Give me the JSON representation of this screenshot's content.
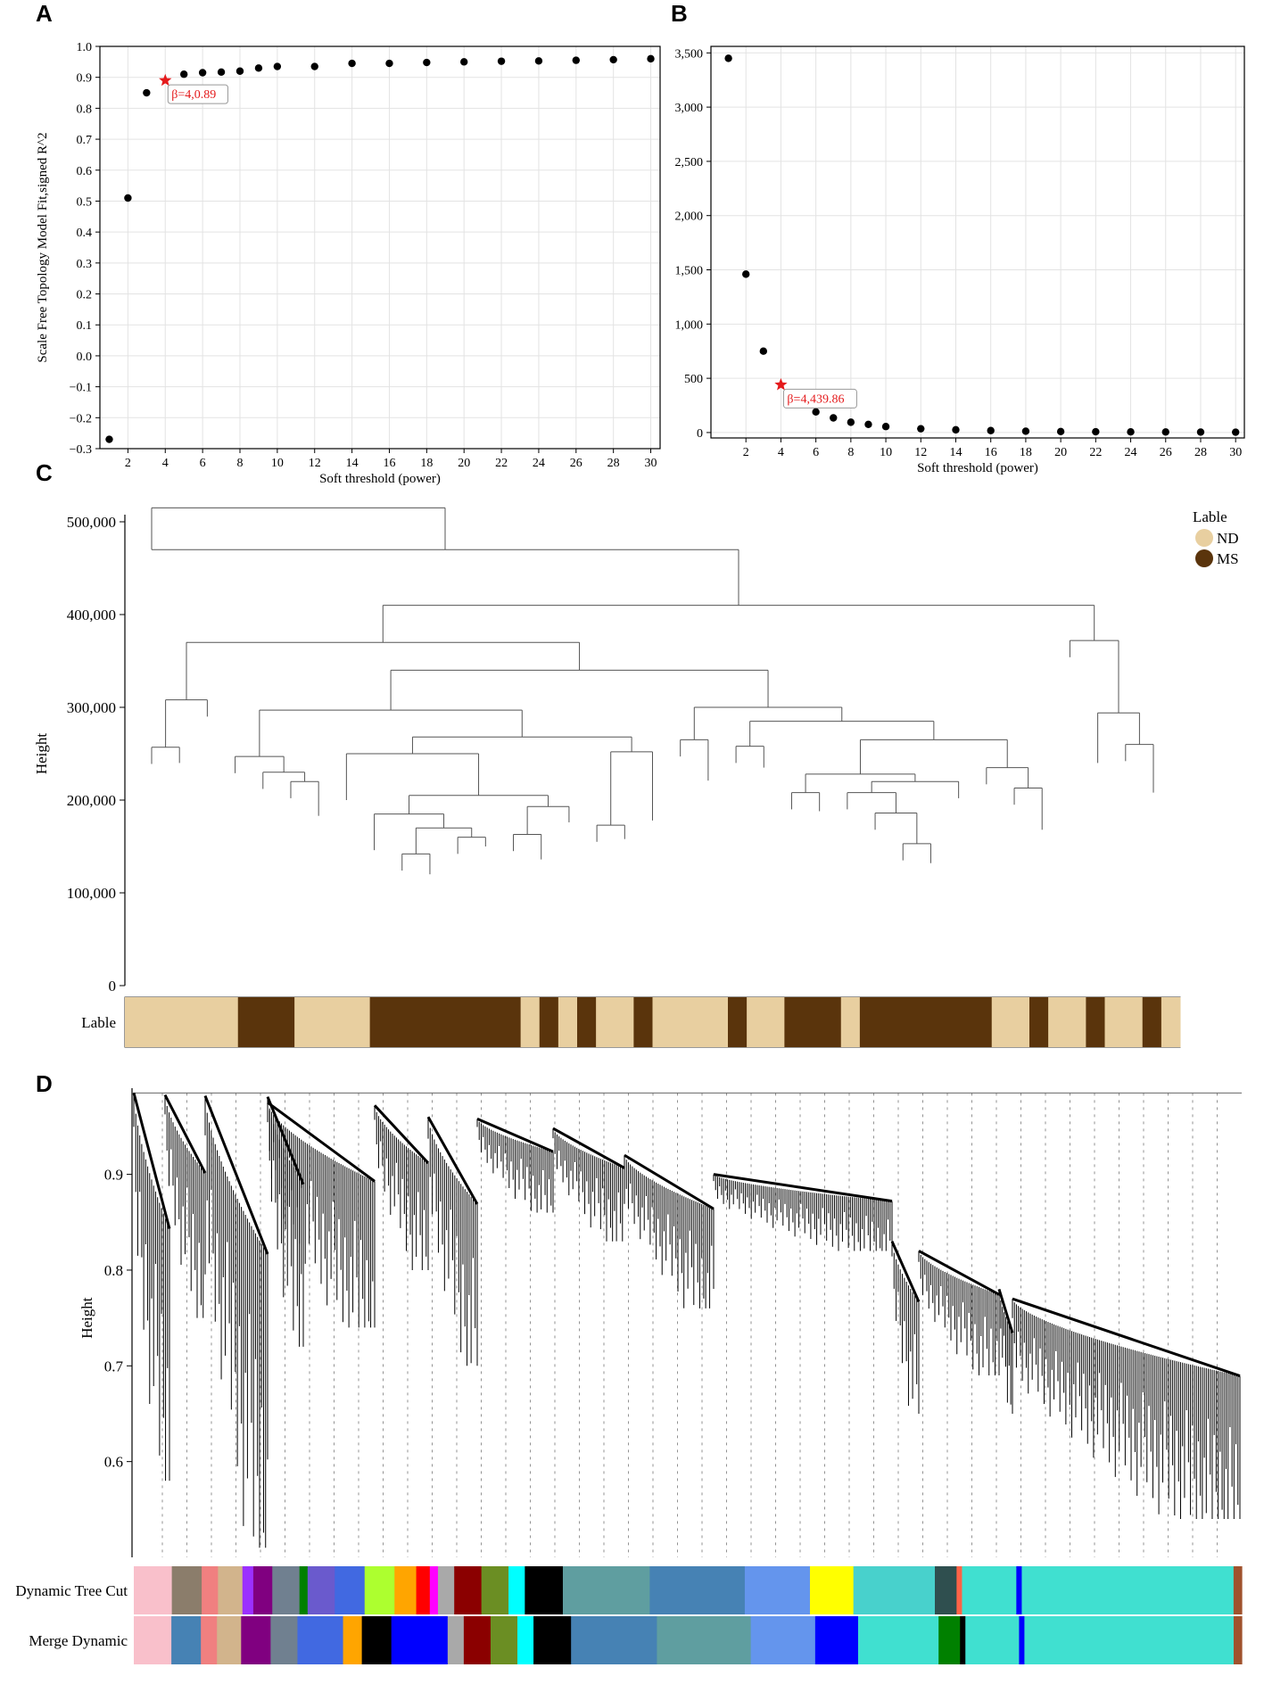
{
  "panels": {
    "a": "A",
    "b": "B",
    "c": "C",
    "d": "D"
  },
  "chart_data": [
    {
      "id": "A",
      "type": "scatter",
      "xlabel": "Soft threshold (power)",
      "ylabel": "Scale Free Topology Model Fit,signed R^2",
      "xlim": [
        0.5,
        30.5
      ],
      "ylim": [
        -0.3,
        1.0
      ],
      "xticks": [
        2,
        4,
        6,
        8,
        10,
        12,
        14,
        16,
        18,
        20,
        22,
        24,
        26,
        28,
        30
      ],
      "yticks": [
        -0.3,
        -0.2,
        -0.1,
        0.0,
        0.1,
        0.2,
        0.3,
        0.4,
        0.5,
        0.6,
        0.7,
        0.8,
        0.9,
        1.0
      ],
      "ytick_labels": [
        "−0.3",
        "−0.2",
        "−0.1",
        "0.0",
        "0.1",
        "0.2",
        "0.3",
        "0.4",
        "0.5",
        "0.6",
        "0.7",
        "0.8",
        "0.9",
        "1.0"
      ],
      "grid": true,
      "x": [
        1,
        2,
        3,
        5,
        6,
        7,
        8,
        9,
        10,
        12,
        14,
        16,
        18,
        20,
        22,
        24,
        26,
        28,
        30
      ],
      "y": [
        -0.27,
        0.51,
        0.85,
        0.91,
        0.915,
        0.917,
        0.92,
        0.93,
        0.935,
        0.935,
        0.945,
        0.945,
        0.948,
        0.95,
        0.952,
        0.953,
        0.955,
        0.957,
        0.96
      ],
      "highlight": {
        "x": 4,
        "y": 0.89,
        "label": "β=4,0.89",
        "color": "#e41a1c"
      }
    },
    {
      "id": "B",
      "type": "scatter",
      "xlabel": "Soft threshold (power)",
      "ylabel": "",
      "xlim": [
        0,
        30.5
      ],
      "ylim": [
        -50,
        3560
      ],
      "xticks": [
        2,
        4,
        6,
        8,
        10,
        12,
        14,
        16,
        18,
        20,
        22,
        24,
        26,
        28,
        30
      ],
      "yticks": [
        0,
        500,
        1000,
        1500,
        2000,
        2500,
        3000,
        3500
      ],
      "ytick_labels": [
        "0",
        "500",
        "1,000",
        "1,500",
        "2,000",
        "2,500",
        "3,000",
        "3,500"
      ],
      "grid": true,
      "x": [
        1,
        2,
        3,
        6,
        7,
        8,
        9,
        10,
        12,
        14,
        16,
        18,
        20,
        22,
        24,
        26,
        28,
        30
      ],
      "y": [
        3450,
        1460,
        750,
        190,
        135,
        95,
        75,
        55,
        35,
        25,
        18,
        12,
        9,
        7,
        6,
        5,
        4,
        3
      ],
      "highlight": {
        "x": 4,
        "y": 439.86,
        "label": "β=4,439.86",
        "color": "#e41a1c"
      }
    },
    {
      "id": "C",
      "type": "dendrogram",
      "ylabel": "Height",
      "ylim": [
        0,
        500000
      ],
      "yticks": [
        0,
        100000,
        200000,
        300000,
        400000,
        500000
      ],
      "ytick_labels": [
        "0",
        "100,000",
        "200,000",
        "300,000",
        "400,000",
        "500,000"
      ],
      "label_track": "Lable",
      "legend": {
        "title": "Lable",
        "items": [
          {
            "name": "ND",
            "color": "#e8cfa0"
          },
          {
            "name": "MS",
            "color": "#5a340c"
          }
        ]
      },
      "sample_labels": [
        "ND",
        "ND",
        "ND",
        "ND",
        "ND",
        "ND",
        "MS",
        "MS",
        "MS",
        "ND",
        "ND",
        "ND",
        "ND",
        "MS",
        "MS",
        "MS",
        "MS",
        "MS",
        "MS",
        "MS",
        "MS",
        "ND",
        "MS",
        "ND",
        "MS",
        "ND",
        "ND",
        "MS",
        "ND",
        "ND",
        "ND",
        "ND",
        "MS",
        "ND",
        "ND",
        "MS",
        "MS",
        "MS",
        "ND",
        "MS",
        "MS",
        "MS",
        "MS",
        "MS",
        "MS",
        "MS",
        "ND",
        "ND",
        "MS",
        "ND",
        "ND",
        "MS",
        "ND",
        "ND",
        "MS",
        "ND"
      ]
    },
    {
      "id": "D",
      "type": "dendrogram",
      "ylabel": "Height",
      "ylim": [
        0.5,
        0.99
      ],
      "yticks": [
        0.6,
        0.7,
        0.8,
        0.9
      ],
      "ytick_labels": [
        "0.6",
        "0.7",
        "0.8",
        "0.9"
      ],
      "tracks": [
        "Dynamic Tree Cut",
        "Merge Dynamic"
      ],
      "dynamic_tree_cut": [
        {
          "color": "#f9c0cb",
          "w": 0.028
        },
        {
          "color": "#8b7d6b",
          "w": 0.022
        },
        {
          "color": "#f08080",
          "w": 0.012
        },
        {
          "color": "#d2b48c",
          "w": 0.018
        },
        {
          "color": "#9b30ff",
          "w": 0.008
        },
        {
          "color": "#800080",
          "w": 0.014
        },
        {
          "color": "#708090",
          "w": 0.02
        },
        {
          "color": "#008000",
          "w": 0.006
        },
        {
          "color": "#6a5acd",
          "w": 0.02
        },
        {
          "color": "#4169e1",
          "w": 0.022
        },
        {
          "color": "#adff2f",
          "w": 0.022
        },
        {
          "color": "#ffa500",
          "w": 0.016
        },
        {
          "color": "#ff0000",
          "w": 0.01
        },
        {
          "color": "#ff00ff",
          "w": 0.006
        },
        {
          "color": "#a9a9a9",
          "w": 0.012
        },
        {
          "color": "#8b0000",
          "w": 0.02
        },
        {
          "color": "#6b8e23",
          "w": 0.02
        },
        {
          "color": "#00ffff",
          "w": 0.012
        },
        {
          "color": "#000000",
          "w": 0.028
        },
        {
          "color": "#5f9ea0",
          "w": 0.064
        },
        {
          "color": "#4682b4",
          "w": 0.07
        },
        {
          "color": "#6495ed",
          "w": 0.048
        },
        {
          "color": "#ffff00",
          "w": 0.032
        },
        {
          "color": "#48d1cc",
          "w": 0.06
        },
        {
          "color": "#2f4f4f",
          "w": 0.016
        },
        {
          "color": "#ff6347",
          "w": 0.004
        },
        {
          "color": "#40e0d0",
          "w": 0.04
        },
        {
          "color": "#0000ff",
          "w": 0.004
        },
        {
          "color": "#40e0d0",
          "w": 0.156
        },
        {
          "color": "#a0522d",
          "w": 0.006
        }
      ],
      "merge_dynamic": [
        {
          "color": "#f9c0cb",
          "w": 0.028
        },
        {
          "color": "#4682b4",
          "w": 0.022
        },
        {
          "color": "#f08080",
          "w": 0.012
        },
        {
          "color": "#d2b48c",
          "w": 0.018
        },
        {
          "color": "#800080",
          "w": 0.022
        },
        {
          "color": "#708090",
          "w": 0.02
        },
        {
          "color": "#4169e1",
          "w": 0.034
        },
        {
          "color": "#ffa500",
          "w": 0.014
        },
        {
          "color": "#000000",
          "w": 0.022
        },
        {
          "color": "#0000ff",
          "w": 0.042
        },
        {
          "color": "#a9a9a9",
          "w": 0.012
        },
        {
          "color": "#8b0000",
          "w": 0.02
        },
        {
          "color": "#6b8e23",
          "w": 0.02
        },
        {
          "color": "#00ffff",
          "w": 0.012
        },
        {
          "color": "#000000",
          "w": 0.028
        },
        {
          "color": "#4682b4",
          "w": 0.064
        },
        {
          "color": "#5f9ea0",
          "w": 0.07
        },
        {
          "color": "#6495ed",
          "w": 0.048
        },
        {
          "color": "#0000ff",
          "w": 0.032
        },
        {
          "color": "#40e0d0",
          "w": 0.06
        },
        {
          "color": "#008000",
          "w": 0.016
        },
        {
          "color": "#000000",
          "w": 0.004
        },
        {
          "color": "#40e0d0",
          "w": 0.04
        },
        {
          "color": "#0000ff",
          "w": 0.004
        },
        {
          "color": "#40e0d0",
          "w": 0.156
        },
        {
          "color": "#a0522d",
          "w": 0.006
        }
      ]
    }
  ]
}
